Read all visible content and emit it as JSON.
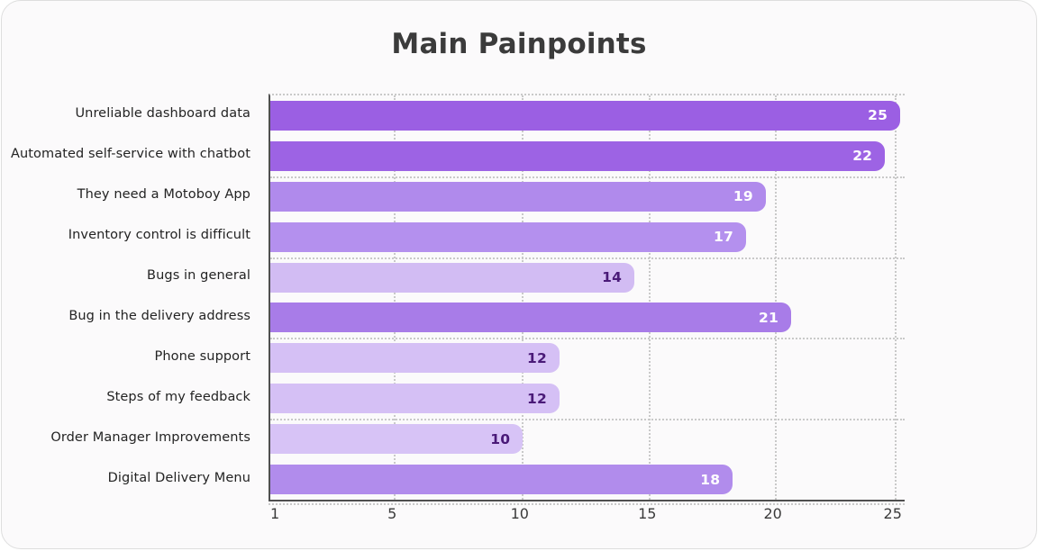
{
  "chart_data": {
    "type": "bar",
    "orientation": "horizontal",
    "title": "Main Painpoints",
    "xlabel": "",
    "ylabel": "",
    "categories": [
      "Unreliable dashboard data",
      "Automated self-service with chatbot",
      "They need a Motoboy App",
      "Inventory control is difficult",
      "Bugs in general",
      "Bug in the delivery address",
      "Phone support",
      "Steps of my feedback",
      "Order Manager Improvements",
      "Digital Delivery Menu"
    ],
    "values": [
      25,
      22,
      19,
      17,
      14,
      21,
      12,
      12,
      10,
      18
    ],
    "xticks": [
      1,
      5,
      10,
      15,
      20,
      25
    ],
    "xtick_pcts": [
      1.0,
      19.5,
      39.6,
      59.7,
      79.5,
      98.4
    ],
    "grid": "dotted vertical at ticks, dotted horizontal every 2 rows",
    "hgrid_pcts": [
      20,
      40,
      60,
      80
    ],
    "legend": "none",
    "items": [
      {
        "label": "Unreliable dashboard data",
        "value": 25,
        "color": "#9b5fe3",
        "text_color": "#ffffff",
        "width_pct": 99.3
      },
      {
        "label": "Automated self-service with chatbot",
        "value": 22,
        "color": "#9d63e4",
        "text_color": "#ffffff",
        "width_pct": 96.9
      },
      {
        "label": "They need a Motoboy App",
        "value": 19,
        "color": "#b08aec",
        "text_color": "#ffffff",
        "width_pct": 78.1
      },
      {
        "label": "Inventory control is difficult",
        "value": 17,
        "color": "#b490ee",
        "text_color": "#ffffff",
        "width_pct": 75.0
      },
      {
        "label": "Bugs in general",
        "value": 14,
        "color": "#d2bcf3",
        "text_color": "#4a1a78",
        "width_pct": 57.4
      },
      {
        "label": "Bug in the delivery address",
        "value": 21,
        "color": "#a87ce8",
        "text_color": "#ffffff",
        "width_pct": 82.1
      },
      {
        "label": "Phone support",
        "value": 12,
        "color": "#d5c0f5",
        "text_color": "#4a1a78",
        "width_pct": 45.6
      },
      {
        "label": "Steps of my feedback",
        "value": 12,
        "color": "#d5c0f5",
        "text_color": "#4a1a78",
        "width_pct": 45.6
      },
      {
        "label": "Order Manager Improvements",
        "value": 10,
        "color": "#d7c3f6",
        "text_color": "#4a1a78",
        "width_pct": 39.8
      },
      {
        "label": "Digital Delivery Menu",
        "value": 18,
        "color": "#b18cec",
        "text_color": "#ffffff",
        "width_pct": 72.9
      }
    ],
    "colors": {
      "axis": "#4f4f4f",
      "gridline": "#c9c9c9",
      "card_background": "#fbfafb",
      "title_text": "#3b3b3b",
      "bar_high": "#9b5fe3",
      "bar_low": "#d7c3f6"
    }
  }
}
